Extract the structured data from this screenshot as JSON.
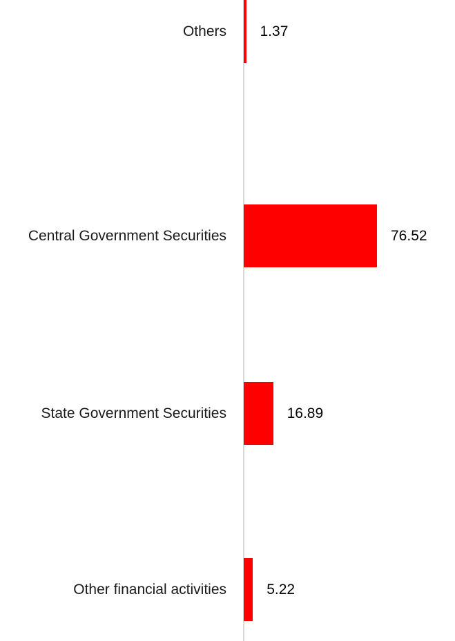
{
  "chart_data": {
    "type": "bar",
    "orientation": "horizontal",
    "title": "",
    "xlabel": "",
    "ylabel": "",
    "categories": [
      "Central Government Securities",
      "State Government Securities",
      "Other financial activities",
      "Others"
    ],
    "values": [
      76.52,
      16.89,
      5.22,
      1.37
    ],
    "value_labels": [
      "76.52",
      "16.89",
      "5.22",
      "1.37"
    ],
    "xlim": [
      0,
      76.52
    ],
    "grid": false,
    "legend_position": "none",
    "bar_color": "#ff0000",
    "axis_line_color": "#d9d9d9",
    "label_color": "#1a1a1a",
    "value_color": "#000000"
  }
}
